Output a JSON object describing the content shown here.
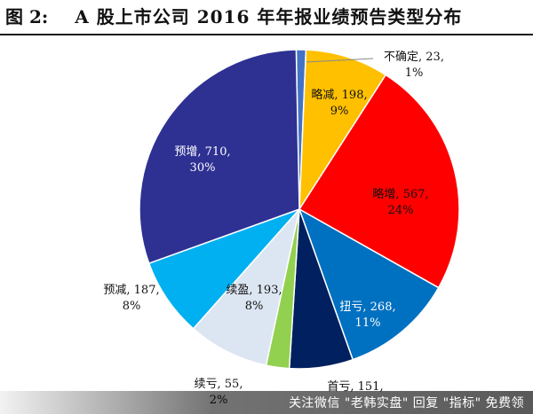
{
  "figure": {
    "number": "图 2:",
    "title": "A 股上市公司 2016 年年报业绩预告类型分布"
  },
  "chart_data": {
    "type": "pie",
    "title": "A 股上市公司 2016 年年报业绩预告类型分布",
    "slices": [
      {
        "name": "不确定",
        "value": 23,
        "percent": "1%",
        "color": "#4472c4"
      },
      {
        "name": "略减",
        "value": 198,
        "percent": "9%",
        "color": "#ffc000"
      },
      {
        "name": "略增",
        "value": 567,
        "percent": "24%",
        "color": "#ff0000"
      },
      {
        "name": "扭亏",
        "value": 268,
        "percent": "11%",
        "color": "#0070c0"
      },
      {
        "name": "首亏",
        "value": 151,
        "percent": "",
        "color": "#002060"
      },
      {
        "name": "续亏",
        "value": 55,
        "percent": "2%",
        "color": "#92d050"
      },
      {
        "name": "续盈",
        "value": 193,
        "percent": "8%",
        "color": "#dce6f2"
      },
      {
        "name": "预减",
        "value": 187,
        "percent": "8%",
        "color": "#00b0f0"
      },
      {
        "name": "预增",
        "value": 710,
        "percent": "30%",
        "color": "#2e3192"
      }
    ]
  },
  "footer": {
    "text": "关注微信 \"老韩实盘\" 回复 \"指标\" 免费领"
  }
}
